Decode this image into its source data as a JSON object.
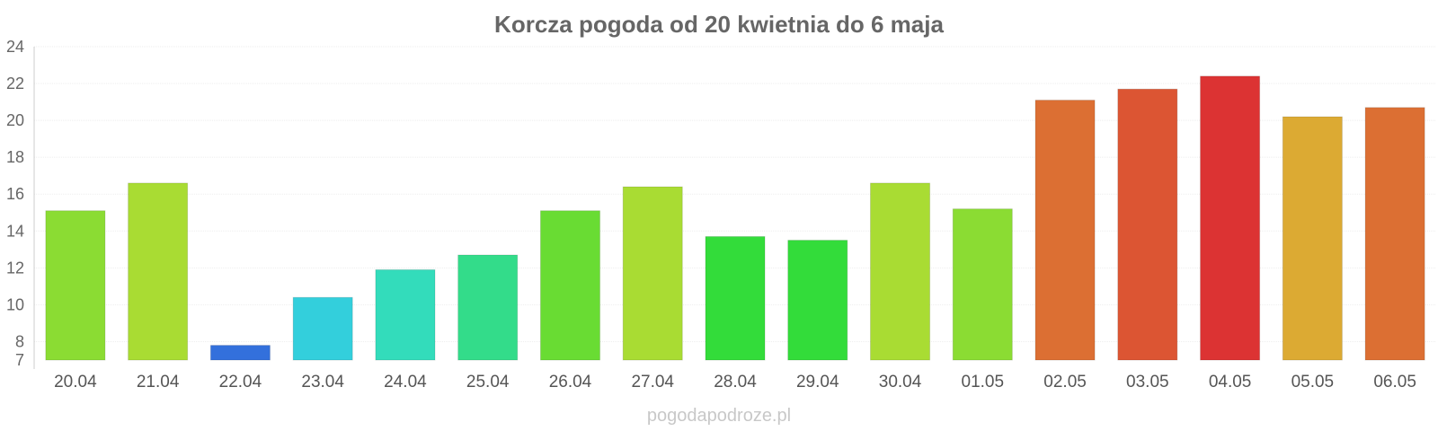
{
  "chart_data": {
    "type": "bar",
    "title": "Korcza pogoda od 20 kwietnia do 6 maja",
    "categories": [
      "20.04",
      "21.04",
      "22.04",
      "23.04",
      "24.04",
      "25.04",
      "26.04",
      "27.04",
      "28.04",
      "29.04",
      "30.04",
      "01.05",
      "02.05",
      "03.05",
      "04.05",
      "05.05",
      "06.05"
    ],
    "values": [
      15.1,
      16.6,
      7.8,
      10.4,
      11.9,
      12.7,
      15.1,
      16.4,
      13.7,
      13.5,
      16.6,
      15.2,
      21.1,
      21.7,
      22.4,
      20.2,
      20.7
    ],
    "colors": [
      "#8bdc33",
      "#a9dc33",
      "#3370dc",
      "#33cfdc",
      "#33dcbb",
      "#33dc8a",
      "#69dc33",
      "#a9dc33",
      "#33dc3a",
      "#33dc3a",
      "#a9dc33",
      "#8bdc33",
      "#dc6f33",
      "#dc5533",
      "#dc3333",
      "#dcaa33",
      "#dc6f33"
    ],
    "ylim": [
      7,
      24
    ],
    "yticks": [
      7,
      8,
      10,
      12,
      14,
      16,
      18,
      20,
      22,
      24
    ],
    "grid": true,
    "legend": "none"
  },
  "footer": {
    "credit": "pogodapodroze.pl"
  }
}
